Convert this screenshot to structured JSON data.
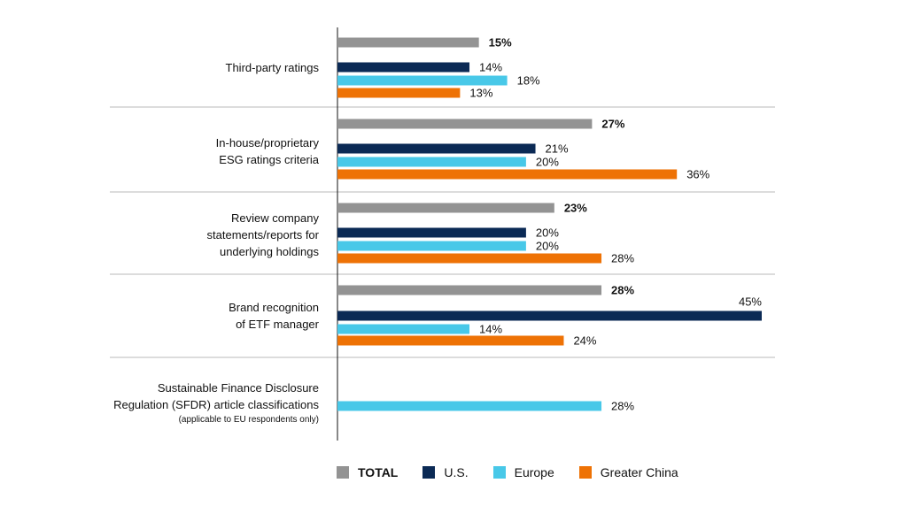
{
  "chart_data": {
    "type": "bar",
    "orientation": "horizontal",
    "categories": [
      {
        "label": "Third-party ratings",
        "note": ""
      },
      {
        "label": "In-house/proprietary ESG ratings criteria",
        "note": ""
      },
      {
        "label": "Review company statements/reports for underlying holdings",
        "note": ""
      },
      {
        "label": "Brand recognition of ETF manager",
        "note": ""
      },
      {
        "label": "Sustainable Finance Disclosure Regulation (SFDR) article classifications",
        "note": "(applicable to EU respondents only)"
      }
    ],
    "category_lines": [
      [
        "Third-party ratings"
      ],
      [
        "In-house/proprietary",
        "ESG ratings criteria"
      ],
      [
        "Review company",
        "statements/reports for",
        "underlying holdings"
      ],
      [
        "Brand recognition",
        "of ETF manager"
      ],
      [
        "Sustainable Finance Disclosure",
        "Regulation (SFDR) article classifications"
      ]
    ],
    "series": [
      {
        "name": "TOTAL",
        "color": "#939393",
        "values": [
          15,
          27,
          23,
          28,
          null
        ]
      },
      {
        "name": "U.S.",
        "color": "#0b2a55",
        "values": [
          14,
          21,
          20,
          45,
          null
        ]
      },
      {
        "name": "Europe",
        "color": "#48c8e8",
        "values": [
          18,
          20,
          20,
          14,
          28
        ]
      },
      {
        "name": "Greater China",
        "color": "#ee7205",
        "values": [
          13,
          36,
          28,
          24,
          null
        ]
      }
    ],
    "value_suffix": "%",
    "xlim": [
      0,
      45
    ],
    "grid": false,
    "legend_position": "bottom"
  }
}
